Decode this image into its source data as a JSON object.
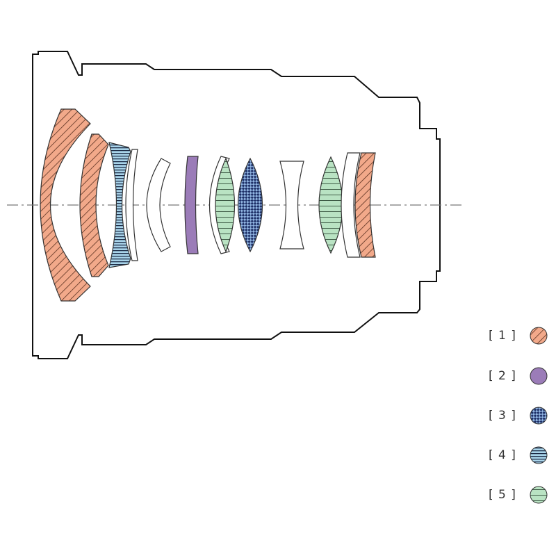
{
  "legend": [
    {
      "label": "[ 1 ]"
    },
    {
      "label": "[ 2 ]"
    },
    {
      "label": "[ 3 ]"
    },
    {
      "label": "[ 4 ]"
    },
    {
      "label": "[ 5 ]"
    }
  ]
}
